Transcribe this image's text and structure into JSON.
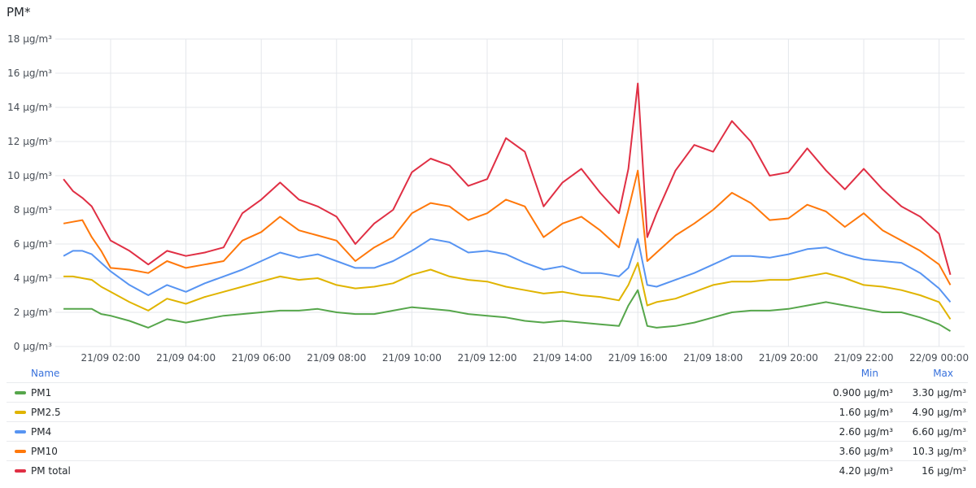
{
  "panel": {
    "title": "PM*"
  },
  "legend": {
    "header": {
      "name": "Name",
      "min": "Min",
      "max": "Max"
    },
    "rows": [
      {
        "name": "PM1",
        "color": "#56a64b",
        "min": "0.900 µg/m³",
        "max": "3.30 µg/m³"
      },
      {
        "name": "PM2.5",
        "color": "#e0b400",
        "min": "1.60 µg/m³",
        "max": "4.90 µg/m³"
      },
      {
        "name": "PM4",
        "color": "#5794f2",
        "min": "2.60 µg/m³",
        "max": "6.60 µg/m³"
      },
      {
        "name": "PM10",
        "color": "#ff780a",
        "min": "3.60 µg/m³",
        "max": "10.3 µg/m³"
      },
      {
        "name": "PM total",
        "color": "#e02f44",
        "min": "4.20 µg/m³",
        "max": "16 µg/m³"
      }
    ]
  },
  "chart_data": {
    "type": "line",
    "title": "PM*",
    "y_unit": "µg/m³",
    "ylim": [
      0,
      18
    ],
    "y_ticks": [
      "0 µg/m³",
      "2 µg/m³",
      "4 µg/m³",
      "6 µg/m³",
      "8 µg/m³",
      "10 µg/m³",
      "12 µg/m³",
      "14 µg/m³",
      "16 µg/m³",
      "18 µg/m³"
    ],
    "x_ticks": [
      "21/09 02:00",
      "21/09 04:00",
      "21/09 06:00",
      "21/09 08:00",
      "21/09 10:00",
      "21/09 12:00",
      "21/09 14:00",
      "21/09 16:00",
      "21/09 18:00",
      "21/09 20:00",
      "21/09 22:00",
      "22/09 00:00"
    ],
    "x_hours": [
      0.75,
      1.0,
      1.25,
      1.5,
      1.75,
      2.0,
      2.5,
      3.0,
      3.5,
      4.0,
      4.5,
      5.0,
      5.5,
      6.0,
      6.5,
      7.0,
      7.5,
      8.0,
      8.5,
      9.0,
      9.5,
      10.0,
      10.5,
      11.0,
      11.5,
      12.0,
      12.5,
      13.0,
      13.5,
      14.0,
      14.5,
      15.0,
      15.5,
      15.75,
      16.0,
      16.25,
      16.5,
      17.0,
      17.5,
      18.0,
      18.5,
      19.0,
      19.5,
      20.0,
      20.5,
      21.0,
      21.5,
      22.0,
      22.5,
      23.0,
      23.5,
      24.0,
      24.3
    ],
    "grid": true,
    "legend_placement": "bottom",
    "series": [
      {
        "name": "PM1",
        "color": "#56a64b",
        "values": [
          2.2,
          2.2,
          2.2,
          2.2,
          1.9,
          1.8,
          1.5,
          1.1,
          1.6,
          1.4,
          1.6,
          1.8,
          1.9,
          2.0,
          2.1,
          2.1,
          2.2,
          2.0,
          1.9,
          1.9,
          2.1,
          2.3,
          2.2,
          2.1,
          1.9,
          1.8,
          1.7,
          1.5,
          1.4,
          1.5,
          1.4,
          1.3,
          1.2,
          2.4,
          3.3,
          1.2,
          1.1,
          1.2,
          1.4,
          1.7,
          2.0,
          2.1,
          2.1,
          2.2,
          2.4,
          2.6,
          2.4,
          2.2,
          2.0,
          2.0,
          1.7,
          1.3,
          0.9
        ]
      },
      {
        "name": "PM2.5",
        "color": "#e0b400",
        "values": [
          4.1,
          4.1,
          4.0,
          3.9,
          3.5,
          3.2,
          2.6,
          2.1,
          2.8,
          2.5,
          2.9,
          3.2,
          3.5,
          3.8,
          4.1,
          3.9,
          4.0,
          3.6,
          3.4,
          3.5,
          3.7,
          4.2,
          4.5,
          4.1,
          3.9,
          3.8,
          3.5,
          3.3,
          3.1,
          3.2,
          3.0,
          2.9,
          2.7,
          3.6,
          4.9,
          2.4,
          2.6,
          2.8,
          3.2,
          3.6,
          3.8,
          3.8,
          3.9,
          3.9,
          4.1,
          4.3,
          4.0,
          3.6,
          3.5,
          3.3,
          3.0,
          2.6,
          1.6
        ]
      },
      {
        "name": "PM4",
        "color": "#5794f2",
        "values": [
          5.3,
          5.6,
          5.6,
          5.4,
          4.9,
          4.4,
          3.6,
          3.0,
          3.6,
          3.2,
          3.7,
          4.1,
          4.5,
          5.0,
          5.5,
          5.2,
          5.4,
          5.0,
          4.6,
          4.6,
          5.0,
          5.6,
          6.3,
          6.1,
          5.5,
          5.6,
          5.4,
          4.9,
          4.5,
          4.7,
          4.3,
          4.3,
          4.1,
          4.6,
          6.3,
          3.6,
          3.5,
          3.9,
          4.3,
          4.8,
          5.3,
          5.3,
          5.2,
          5.4,
          5.7,
          5.8,
          5.4,
          5.1,
          5.0,
          4.9,
          4.3,
          3.4,
          2.6
        ]
      },
      {
        "name": "PM10",
        "color": "#ff780a",
        "values": [
          7.2,
          7.3,
          7.4,
          6.4,
          5.6,
          4.6,
          4.5,
          4.3,
          5.0,
          4.6,
          4.8,
          5.0,
          6.2,
          6.7,
          7.6,
          6.8,
          6.5,
          6.2,
          5.0,
          5.8,
          6.4,
          7.8,
          8.4,
          8.2,
          7.4,
          7.8,
          8.6,
          8.2,
          6.4,
          7.2,
          7.6,
          6.8,
          5.8,
          8.0,
          10.3,
          5.0,
          5.5,
          6.5,
          7.2,
          8.0,
          9.0,
          8.4,
          7.4,
          7.5,
          8.3,
          7.9,
          7.0,
          7.8,
          6.8,
          6.2,
          5.6,
          4.8,
          3.6
        ]
      },
      {
        "name": "PM total",
        "color": "#e02f44",
        "values": [
          9.8,
          9.1,
          8.7,
          8.2,
          7.2,
          6.2,
          5.6,
          4.8,
          5.6,
          5.3,
          5.5,
          5.8,
          7.8,
          8.6,
          9.6,
          8.6,
          8.2,
          7.6,
          6.0,
          7.2,
          8.0,
          10.2,
          11.0,
          10.6,
          9.4,
          9.8,
          12.2,
          11.4,
          8.2,
          9.6,
          10.4,
          9.0,
          7.8,
          10.4,
          15.4,
          6.4,
          7.8,
          10.3,
          11.8,
          11.4,
          13.2,
          12.0,
          10.0,
          10.2,
          11.6,
          10.3,
          9.2,
          10.4,
          9.2,
          8.2,
          7.6,
          6.6,
          4.2
        ]
      }
    ]
  }
}
